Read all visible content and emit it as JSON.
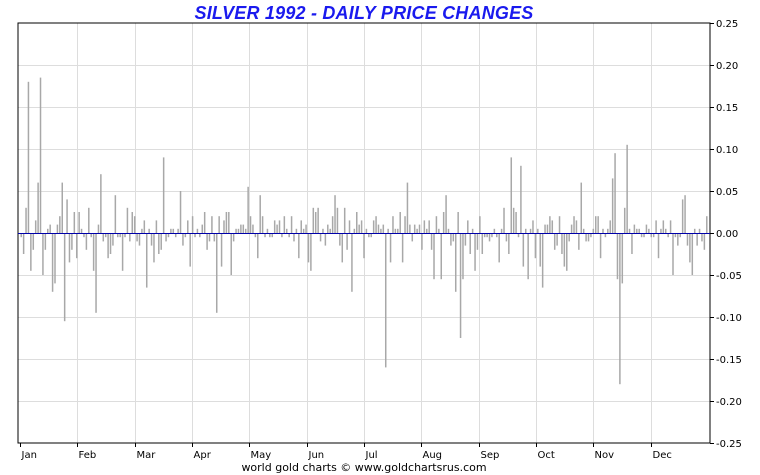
{
  "chart_data": {
    "type": "bar",
    "title": "SILVER 1992 - DAILY PRICE CHANGES",
    "credit": "world gold charts © www.goldchartsrus.com",
    "xlabel": "",
    "ylabel": "",
    "ylim": [
      -0.25,
      0.25
    ],
    "y_ticks": [
      "0.25",
      "0.20",
      "0.15",
      "0.10",
      "0.05",
      "0.00",
      "-0.05",
      "-0.10",
      "-0.15",
      "-0.20",
      "-0.25"
    ],
    "y_tick_values": [
      0.25,
      0.2,
      0.15,
      0.1,
      0.05,
      0.0,
      -0.05,
      -0.1,
      -0.15,
      -0.2,
      -0.25
    ],
    "y_axis_side": "right",
    "grid": true,
    "zero_line_color": "#0000aa",
    "bar_color": "#a8a8a8",
    "months": [
      "Jan",
      "Feb",
      "Mar",
      "Apr",
      "May",
      "Jun",
      "Jul",
      "Aug",
      "Sep",
      "Oct",
      "Nov",
      "Dec"
    ],
    "series": [
      {
        "values": [
          -0.005,
          -0.025,
          0.03,
          0.18,
          -0.045,
          -0.02,
          0.015,
          0.06,
          0.185,
          -0.05,
          -0.02,
          0.005,
          0.01,
          -0.07,
          -0.06,
          0.01,
          0.02,
          0.06,
          -0.105,
          0.04,
          -0.035,
          -0.02,
          0.025,
          -0.03,
          0.025,
          0.005,
          -0.005,
          -0.02,
          0.03,
          -0.005,
          -0.045,
          -0.095,
          0.01,
          0.07,
          -0.01,
          -0.005,
          -0.03,
          -0.025,
          -0.015,
          0.045,
          -0.005,
          -0.005,
          -0.045,
          -0.005,
          0.03,
          -0.01,
          0.025,
          0.02,
          -0.01,
          -0.015,
          0.005,
          0.015,
          -0.065,
          0.005,
          -0.015,
          -0.035,
          0.015,
          -0.025,
          -0.02,
          0.09,
          -0.01,
          -0.005,
          0.005,
          0.005,
          -0.005,
          0.005,
          0.05,
          -0.015,
          -0.005,
          0.015,
          -0.04,
          0.02,
          -0.005,
          0.005,
          -0.005,
          0.01,
          0.025,
          -0.02,
          -0.01,
          0.02,
          -0.01,
          -0.095,
          0.02,
          -0.04,
          0.015,
          0.025,
          0.025,
          -0.05,
          -0.01,
          0.005,
          0.005,
          0.01,
          0.01,
          0.005,
          0.055,
          0.02,
          0.01,
          -0.005,
          -0.03,
          0.045,
          0.02,
          -0.005,
          0.005,
          -0.005,
          -0.005,
          0.015,
          0.01,
          0.015,
          -0.005,
          0.02,
          0.005,
          -0.005,
          0.02,
          -0.01,
          0.005,
          -0.03,
          0.015,
          0.005,
          0.01,
          -0.035,
          -0.045,
          0.03,
          0.025,
          0.03,
          -0.01,
          0.005,
          -0.015,
          0.01,
          0.005,
          0.02,
          0.045,
          0.03,
          -0.015,
          -0.035,
          0.03,
          -0.02,
          0.015,
          -0.07,
          0.005,
          0.025,
          0.01,
          0.015,
          -0.03,
          0.005,
          -0.005,
          -0.005,
          0.015,
          0.02,
          0.01,
          0.005,
          0.01,
          -0.16,
          0.005,
          -0.035,
          0.02,
          0.005,
          0.005,
          0.025,
          -0.035,
          0.02,
          0.06,
          0.01,
          -0.01,
          0.01,
          0.005,
          0.01,
          -0.02,
          0.015,
          0.005,
          0.015,
          -0.02,
          -0.055,
          0.02,
          0.005,
          -0.055,
          0.025,
          0.045,
          0.005,
          -0.015,
          -0.01,
          -0.07,
          0.025,
          -0.125,
          -0.055,
          -0.015,
          0.015,
          -0.025,
          0.005,
          -0.045,
          -0.02,
          0.02,
          -0.025,
          -0.005,
          -0.005,
          -0.01,
          -0.005,
          0.005,
          -0.005,
          -0.035,
          0.005,
          0.03,
          -0.01,
          -0.025,
          0.09,
          0.03,
          0.025,
          -0.005,
          0.08,
          -0.04,
          0.005,
          -0.055,
          0.005,
          0.015,
          -0.03,
          0.005,
          -0.04,
          -0.065,
          0.01,
          0.01,
          0.02,
          0.015,
          -0.02,
          -0.015,
          0.02,
          -0.025,
          -0.04,
          -0.045,
          -0.01,
          0.01,
          0.02,
          0.015,
          -0.02,
          0.06,
          0.005,
          -0.01,
          -0.01,
          -0.005,
          0.005,
          0.02,
          0.02,
          -0.03,
          0.005,
          -0.005,
          0.005,
          0.015,
          0.065,
          0.095,
          -0.055,
          -0.18,
          -0.06,
          0.03,
          0.105,
          0.005,
          -0.025,
          0.01,
          0.005,
          0.005,
          -0.005,
          -0.005,
          0.01,
          0.005,
          -0.005,
          -0.005,
          0.015,
          -0.03,
          0.005,
          0.015,
          0.005,
          -0.005,
          0.015,
          -0.05,
          -0.005,
          -0.015,
          -0.005,
          0.04,
          0.045,
          -0.015,
          -0.035,
          -0.05,
          0.005,
          -0.015,
          0.005,
          -0.01,
          -0.02,
          0.02
        ]
      }
    ]
  }
}
